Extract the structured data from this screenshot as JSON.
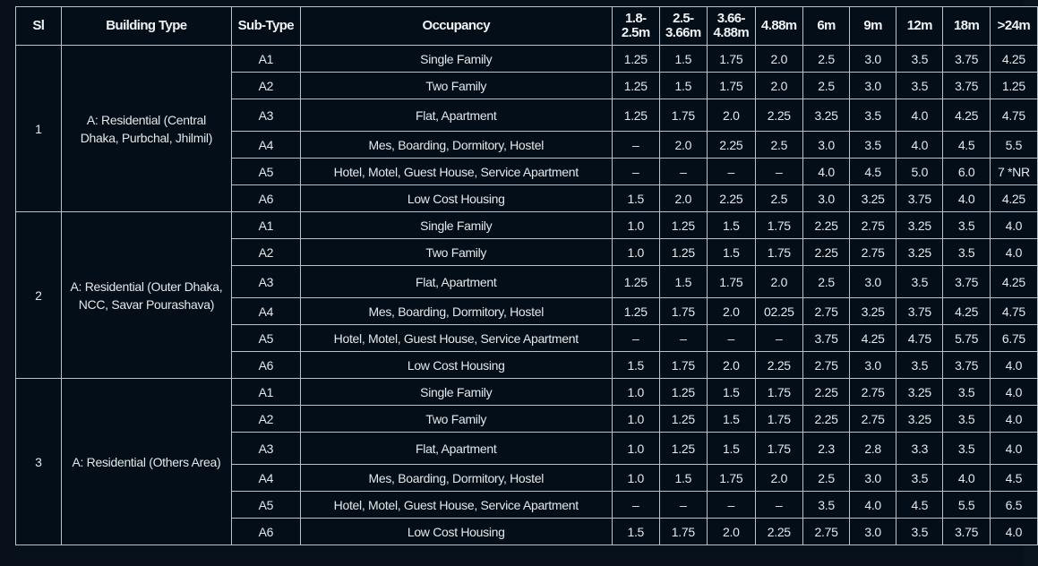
{
  "table": {
    "headers": {
      "sl": "Sl",
      "building_type": "Building Type",
      "sub_type": "Sub-Type",
      "occupancy": "Occupancy",
      "widths": [
        "1.8-2.5m",
        "2.5-3.66m",
        "3.66-4.88m",
        "4.88m",
        "6m",
        "9m",
        "12m",
        "18m",
        ">24m"
      ]
    },
    "groups": [
      {
        "sl": "1",
        "building_type": "A: Residential (Central Dhaka, Purbchal, Jhilmil)",
        "rows": [
          {
            "sub_type": "A1",
            "occupancy": "Single Family",
            "values": [
              "1.25",
              "1.5",
              "1.75",
              "2.0",
              "2.5",
              "3.0",
              "3.5",
              "3.75",
              "4.25"
            ]
          },
          {
            "sub_type": "A2",
            "occupancy": "Two Family",
            "values": [
              "1.25",
              "1.5",
              "1.75",
              "2.0",
              "2.5",
              "3.0",
              "3.5",
              "3.75",
              "1.25"
            ]
          },
          {
            "sub_type": "A3",
            "occupancy": "Flat, Apartment",
            "values": [
              "1.25",
              "1.75",
              "2.0",
              "2.25",
              "3.25",
              "3.5",
              "4.0",
              "4.25",
              "4.75"
            ]
          },
          {
            "sub_type": "A4",
            "occupancy": "Mes, Boarding, Dormitory, Hostel",
            "values": [
              "–",
              "2.0",
              "2.25",
              "2.5",
              "3.0",
              "3.5",
              "4.0",
              "4.5",
              "5.5"
            ]
          },
          {
            "sub_type": "A5",
            "occupancy": "Hotel, Motel, Guest House, Service Apartment",
            "values": [
              "–",
              "–",
              "–",
              "–",
              "4.0",
              "4.5",
              "5.0",
              "6.0",
              "7 *NR"
            ]
          },
          {
            "sub_type": "A6",
            "occupancy": "Low Cost Housing",
            "values": [
              "1.5",
              "2.0",
              "2.25",
              "2.5",
              "3.0",
              "3.25",
              "3.75",
              "4.0",
              "4.25"
            ]
          }
        ]
      },
      {
        "sl": "2",
        "building_type": "A: Residential (Outer Dhaka, NCC, Savar Pourashava)",
        "rows": [
          {
            "sub_type": "A1",
            "occupancy": "Single Family",
            "values": [
              "1.0",
              "1.25",
              "1.5",
              "1.75",
              "2.25",
              "2.75",
              "3.25",
              "3.5",
              "4.0"
            ]
          },
          {
            "sub_type": "A2",
            "occupancy": "Two Family",
            "values": [
              "1.0",
              "1.25",
              "1.5",
              "1.75",
              "2.25",
              "2.75",
              "3.25",
              "3.5",
              "4.0"
            ]
          },
          {
            "sub_type": "A3",
            "occupancy": "Flat, Apartment",
            "values": [
              "1.25",
              "1.5",
              "1.75",
              "2.0",
              "2.5",
              "3.0",
              "3.5",
              "3.75",
              "4.25"
            ]
          },
          {
            "sub_type": "A4",
            "occupancy": "Mes, Boarding, Dormitory, Hostel",
            "values": [
              "1.25",
              "1.75",
              "2.0",
              "02.25",
              "2.75",
              "3.25",
              "3.75",
              "4.25",
              "4.75"
            ]
          },
          {
            "sub_type": "A5",
            "occupancy": "Hotel, Motel, Guest House, Service Apartment",
            "values": [
              "–",
              "–",
              "–",
              "–",
              "3.75",
              "4.25",
              "4.75",
              "5.75",
              "6.75"
            ]
          },
          {
            "sub_type": "A6",
            "occupancy": "Low Cost Housing",
            "values": [
              "1.5",
              "1.75",
              "2.0",
              "2.25",
              "2.75",
              "3.0",
              "3.5",
              "3.75",
              "4.0"
            ]
          }
        ]
      },
      {
        "sl": "3",
        "building_type": "A: Residential (Others Area)",
        "rows": [
          {
            "sub_type": "A1",
            "occupancy": "Single Family",
            "values": [
              "1.0",
              "1.25",
              "1.5",
              "1.75",
              "2.25",
              "2.75",
              "3.25",
              "3.5",
              "4.0"
            ]
          },
          {
            "sub_type": "A2",
            "occupancy": "Two Family",
            "values": [
              "1.0",
              "1.25",
              "1.5",
              "1.75",
              "2.25",
              "2.75",
              "3.25",
              "3.5",
              "4.0"
            ]
          },
          {
            "sub_type": "A3",
            "occupancy": "Flat, Apartment",
            "values": [
              "1.0",
              "1.25",
              "1.5",
              "1.75",
              "2.3",
              "2.8",
              "3.3",
              "3.5",
              "4.0"
            ]
          },
          {
            "sub_type": "A4",
            "occupancy": "Mes, Boarding, Dormitory, Hostel",
            "values": [
              "1.0",
              "1.5",
              "1.75",
              "2.0",
              "2.5",
              "3.0",
              "3.5",
              "4.0",
              "4.5"
            ]
          },
          {
            "sub_type": "A5",
            "occupancy": "Hotel, Motel, Guest House, Service Apartment",
            "values": [
              "–",
              "–",
              "–",
              "–",
              "3.5",
              "4.0",
              "4.5",
              "5.5",
              "6.5"
            ]
          },
          {
            "sub_type": "A6",
            "occupancy": "Low Cost Housing",
            "values": [
              "1.5",
              "1.75",
              "2.0",
              "2.25",
              "2.75",
              "3.0",
              "3.5",
              "3.75",
              "4.0"
            ]
          }
        ]
      }
    ]
  }
}
